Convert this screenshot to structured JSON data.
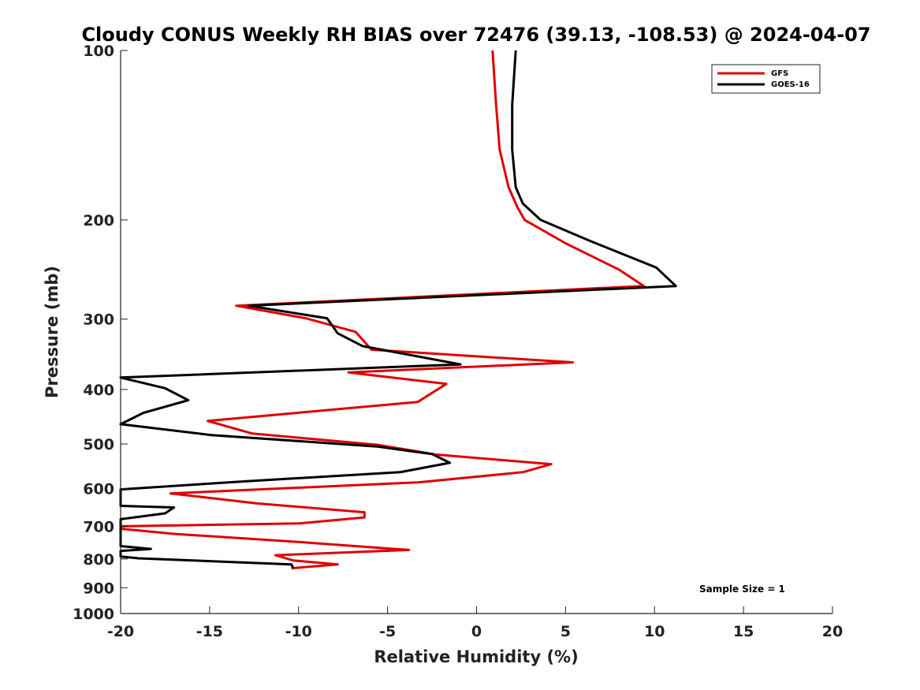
{
  "chart_data": {
    "type": "line",
    "title": "Cloudy CONUS Weekly RH BIAS over 72476 (39.13, -108.53) @ 2024-04-07",
    "xlabel": "Relative Humidity (%)",
    "ylabel": "Pressure (mb)",
    "xlim": [
      -20,
      20
    ],
    "ylim": [
      100,
      1000
    ],
    "y_scale": "log",
    "y_reversed": true,
    "xticks": [
      -20,
      -15,
      -10,
      -5,
      0,
      5,
      10,
      15,
      20
    ],
    "yticks": [
      100,
      200,
      300,
      400,
      500,
      600,
      700,
      800,
      900,
      1000
    ],
    "grid": false,
    "legend_position": "top-right",
    "annotation": "Sample Size = 1",
    "series": [
      {
        "name": "GFS",
        "color": "#e00000",
        "points": [
          [
            0.9,
            100
          ],
          [
            1.1,
            125
          ],
          [
            1.3,
            150
          ],
          [
            1.8,
            175
          ],
          [
            2.3,
            190
          ],
          [
            2.7,
            200
          ],
          [
            5.0,
            220
          ],
          [
            8.0,
            245
          ],
          [
            9.4,
            262
          ],
          [
            -13.5,
            284
          ],
          [
            -9.6,
            299
          ],
          [
            -6.8,
            316
          ],
          [
            -5.9,
            340
          ],
          [
            5.4,
            358
          ],
          [
            -7.2,
            373
          ],
          [
            -1.7,
            391
          ],
          [
            -3.3,
            421
          ],
          [
            -15.1,
            455
          ],
          [
            -12.6,
            479
          ],
          [
            -5.5,
            502
          ],
          [
            -2.3,
            522
          ],
          [
            4.2,
            543
          ],
          [
            2.6,
            561
          ],
          [
            -3.3,
            585
          ],
          [
            -17.2,
            612
          ],
          [
            -12.4,
            637
          ],
          [
            -6.3,
            661
          ],
          [
            -6.3,
            675
          ],
          [
            -10.0,
            692
          ],
          [
            -20.0,
            700
          ],
          [
            -20.0,
            707
          ],
          [
            -17.0,
            722
          ],
          [
            -9.8,
            747
          ],
          [
            -3.8,
            771
          ],
          [
            -11.3,
            788
          ],
          [
            -10.3,
            805
          ],
          [
            -7.8,
            818
          ],
          [
            -10.4,
            831
          ]
        ]
      },
      {
        "name": "GOES-16",
        "color": "#000000",
        "points": [
          [
            2.2,
            100
          ],
          [
            2.0,
            125
          ],
          [
            2.0,
            150
          ],
          [
            2.2,
            175
          ],
          [
            2.6,
            187
          ],
          [
            3.6,
            200
          ],
          [
            6.4,
            218
          ],
          [
            10.1,
            243
          ],
          [
            11.2,
            262
          ],
          [
            -12.8,
            284
          ],
          [
            -8.4,
            299
          ],
          [
            -7.8,
            318
          ],
          [
            -6.4,
            335
          ],
          [
            -0.9,
            361
          ],
          [
            -20.0,
            381
          ],
          [
            -17.5,
            398
          ],
          [
            -16.2,
            418
          ],
          [
            -18.7,
            440
          ],
          [
            -20.0,
            461
          ],
          [
            -14.9,
            482
          ],
          [
            -5.6,
            505
          ],
          [
            -2.5,
            521
          ],
          [
            -1.5,
            540
          ],
          [
            -4.3,
            561
          ],
          [
            -12.9,
            582
          ],
          [
            -20.0,
            602
          ],
          [
            -20.0,
            644
          ],
          [
            -17.0,
            648
          ],
          [
            -17.5,
            664
          ],
          [
            -20.0,
            680
          ],
          [
            -20.0,
            759
          ],
          [
            -18.3,
            768
          ],
          [
            -20.0,
            774
          ],
          [
            -20.0,
            792
          ],
          [
            -19.0,
            798
          ],
          [
            -10.4,
            818
          ],
          [
            -10.3,
            831
          ]
        ]
      }
    ]
  }
}
